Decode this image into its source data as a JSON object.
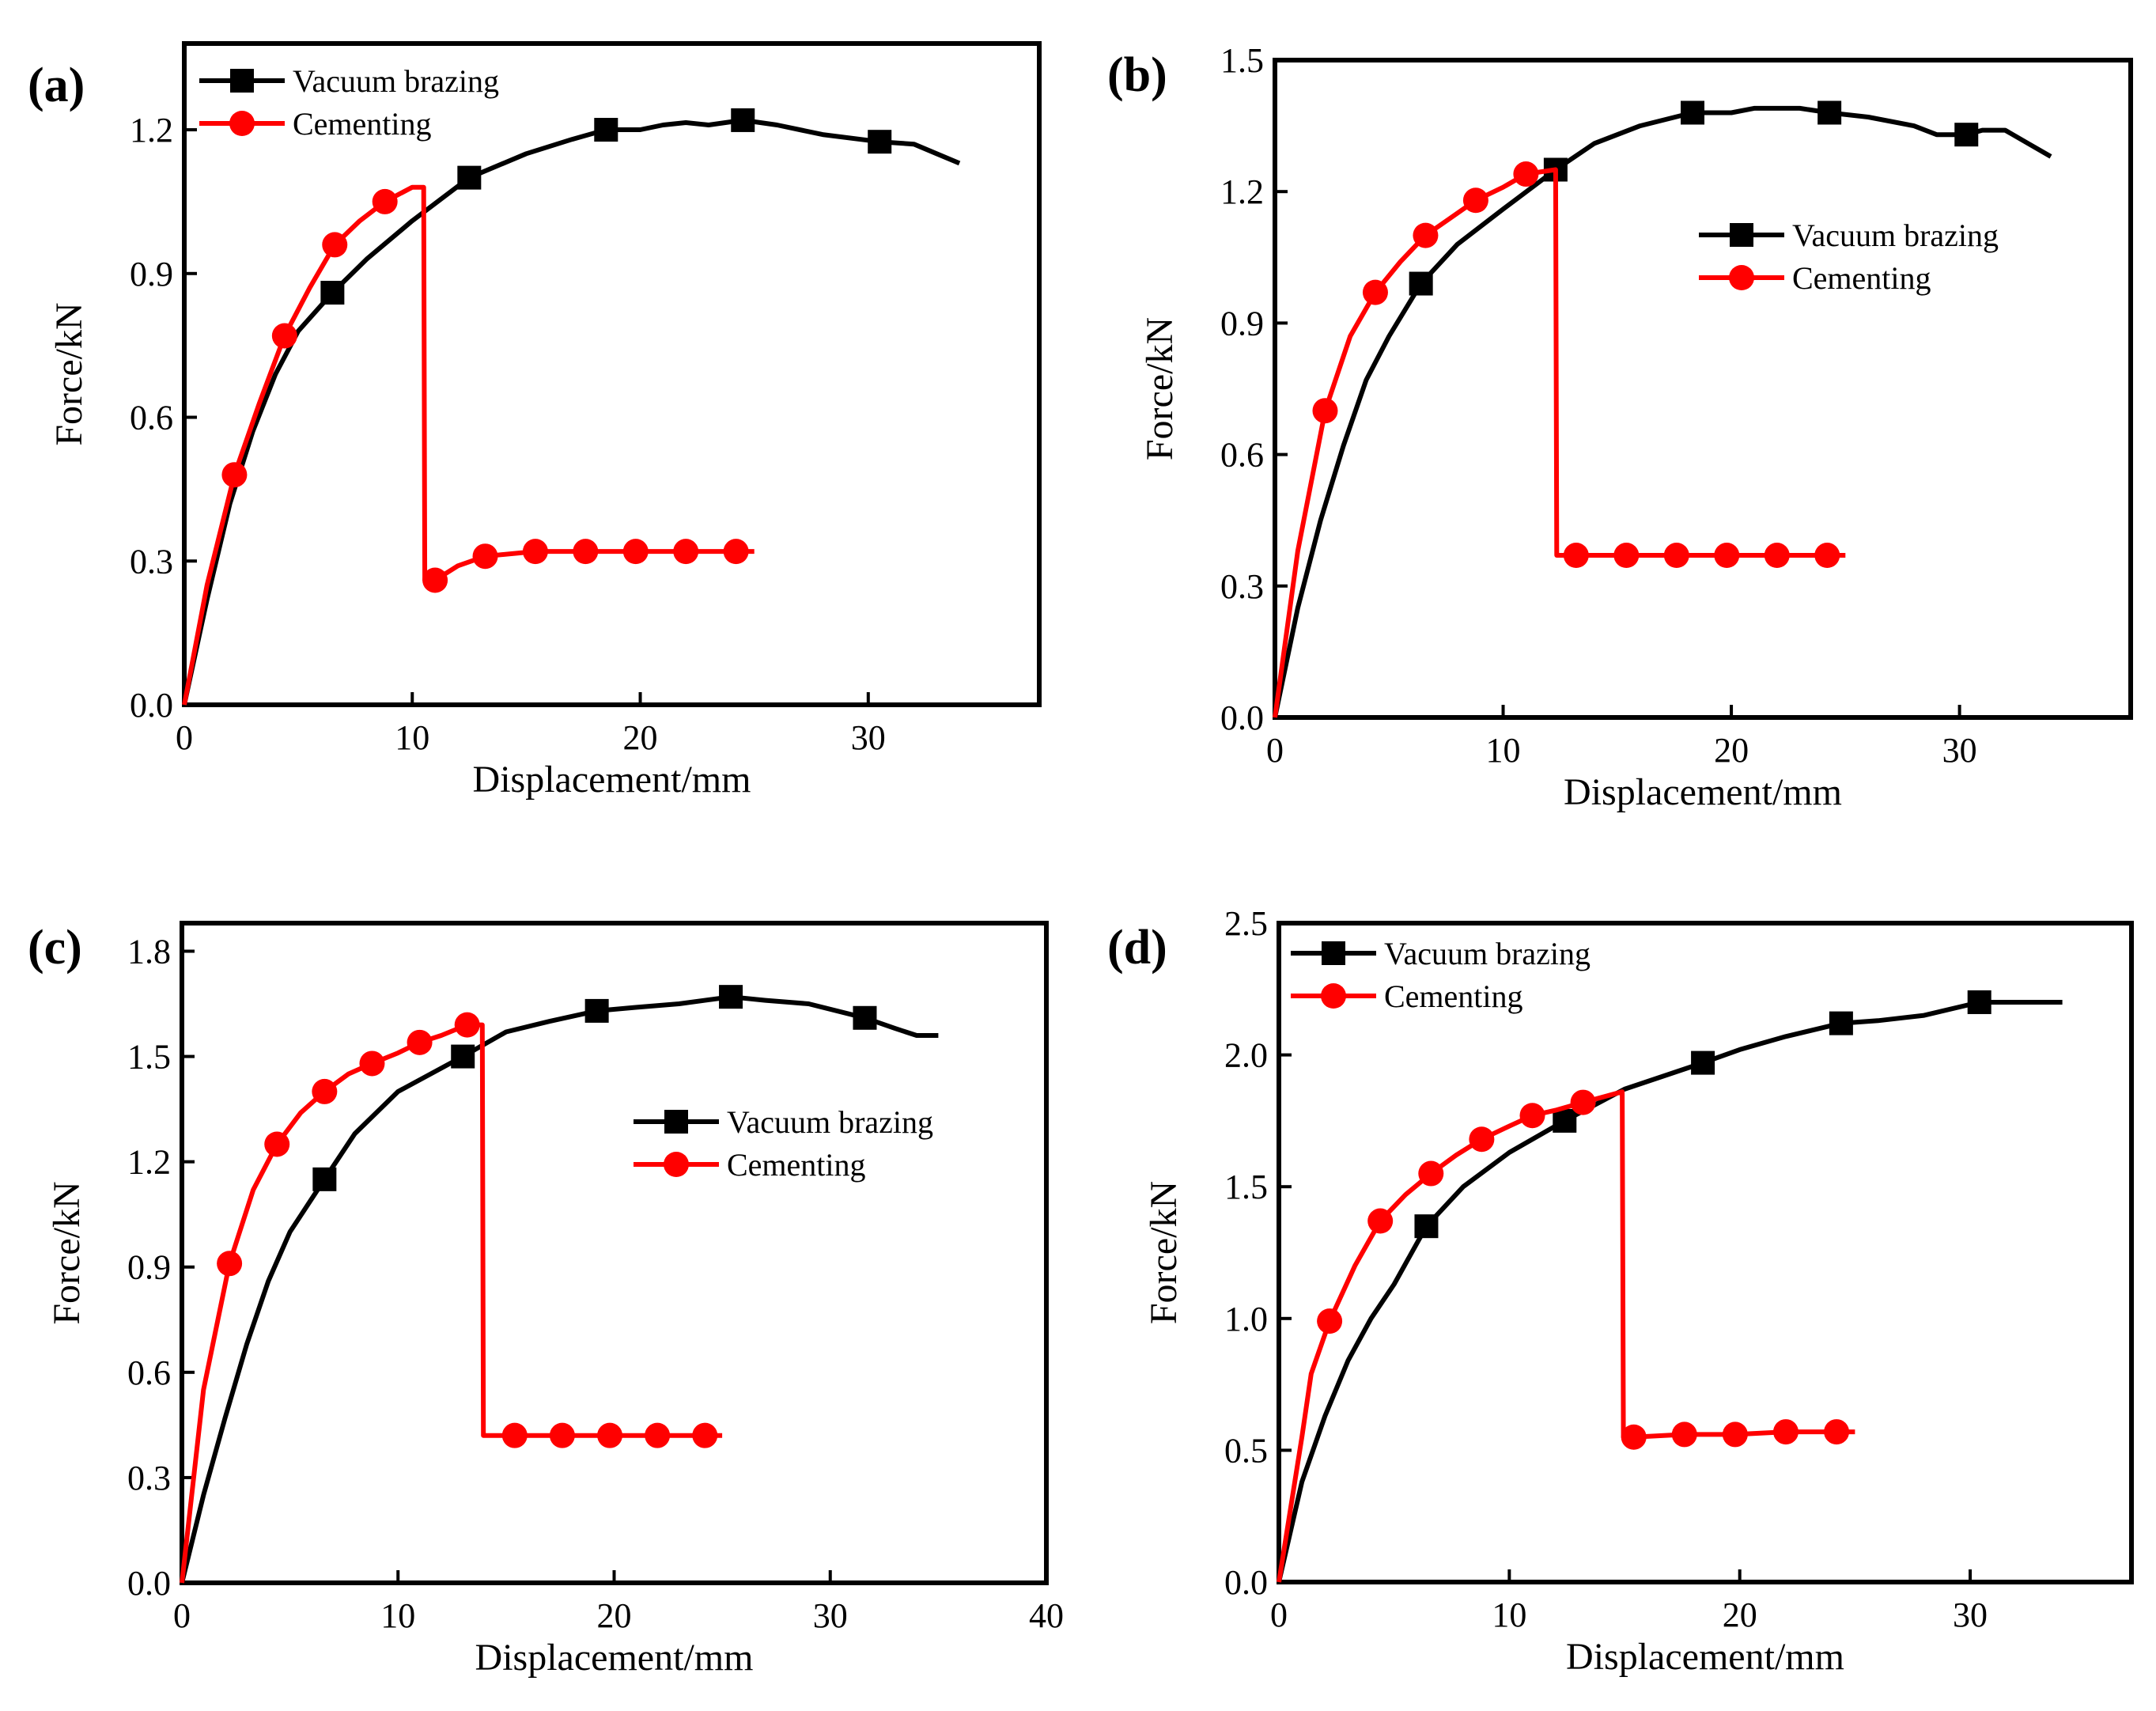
{
  "colors": {
    "vacuum": "#000000",
    "cementing": "#ff0000",
    "background": "#ffffff"
  },
  "chart_data": [
    {
      "panel": "(a)",
      "type": "line",
      "xlabel": "Displacement/mm",
      "ylabel": "Force/kN",
      "xlim": [
        0,
        37.5
      ],
      "ylim": [
        0,
        1.38
      ],
      "xticks": [
        "0",
        "10",
        "20",
        "30"
      ],
      "yticks": [
        "0.0",
        "0.3",
        "0.6",
        "0.9",
        "1.2"
      ],
      "legend_position": "top-left",
      "series": [
        {
          "name": "Vacuum brazing",
          "color": "#000000",
          "marker": "square",
          "x": [
            0,
            1,
            2,
            3,
            4,
            5,
            6.5,
            8,
            10,
            12.5,
            15,
            17,
            18.5,
            20,
            21,
            22,
            23,
            24.5,
            26,
            28,
            30.5,
            32,
            33,
            34
          ],
          "y": [
            0,
            0.22,
            0.42,
            0.57,
            0.69,
            0.78,
            0.86,
            0.93,
            1.01,
            1.1,
            1.15,
            1.18,
            1.2,
            1.2,
            1.21,
            1.215,
            1.21,
            1.22,
            1.21,
            1.19,
            1.175,
            1.17,
            1.15,
            1.13
          ],
          "marker_x": [
            6.5,
            12.5,
            18.5,
            24.5,
            30.5
          ],
          "marker_y": [
            0.86,
            1.1,
            1.2,
            1.22,
            1.175
          ]
        },
        {
          "name": "Cementing",
          "color": "#ff0000",
          "marker": "circle",
          "x": [
            0,
            1,
            2.2,
            3.3,
            4.4,
            5.5,
            6.6,
            7.7,
            8.8,
            10,
            10.5,
            10.55,
            11,
            12,
            13.2,
            15.4,
            17.6,
            19.8,
            22,
            24.2,
            25
          ],
          "y": [
            0,
            0.25,
            0.48,
            0.63,
            0.77,
            0.87,
            0.96,
            1.01,
            1.05,
            1.08,
            1.08,
            0.26,
            0.26,
            0.29,
            0.31,
            0.32,
            0.32,
            0.32,
            0.32,
            0.32,
            0.32
          ],
          "marker_x": [
            2.2,
            4.4,
            6.6,
            8.8,
            11,
            13.2,
            15.4,
            17.6,
            19.8,
            22,
            24.2
          ],
          "marker_y": [
            0.48,
            0.77,
            0.96,
            1.05,
            0.26,
            0.31,
            0.32,
            0.32,
            0.32,
            0.32,
            0.32
          ]
        }
      ]
    },
    {
      "panel": "(b)",
      "type": "line",
      "xlabel": "Displacement/mm",
      "ylabel": "Force/kN",
      "xlim": [
        0,
        37.5
      ],
      "ylim": [
        0,
        1.5
      ],
      "xticks": [
        "0",
        "10",
        "20",
        "30"
      ],
      "yticks": [
        "0.0",
        "0.3",
        "0.6",
        "0.9",
        "1.2",
        "1.5"
      ],
      "legend_position": "center-right",
      "series": [
        {
          "name": "Vacuum brazing",
          "color": "#000000",
          "marker": "square",
          "x": [
            0,
            1,
            2,
            3,
            4,
            5,
            6.4,
            8,
            10,
            12.3,
            14,
            16,
            18.3,
            20,
            21,
            22,
            23,
            24.3,
            26,
            28,
            29,
            30.3,
            31,
            32,
            33,
            34
          ],
          "y": [
            0,
            0.25,
            0.45,
            0.62,
            0.77,
            0.87,
            0.99,
            1.08,
            1.16,
            1.25,
            1.31,
            1.35,
            1.38,
            1.38,
            1.39,
            1.39,
            1.39,
            1.38,
            1.37,
            1.35,
            1.33,
            1.33,
            1.34,
            1.34,
            1.31,
            1.28
          ],
          "marker_x": [
            6.4,
            12.3,
            18.3,
            24.3,
            30.3
          ],
          "marker_y": [
            0.99,
            1.25,
            1.38,
            1.38,
            1.33
          ]
        },
        {
          "name": "Cementing",
          "color": "#ff0000",
          "marker": "circle",
          "x": [
            0,
            1,
            2.2,
            3.3,
            4.4,
            5.5,
            6.6,
            7.7,
            8.8,
            10,
            11,
            12.3,
            12.35,
            13.2,
            15.4,
            17.6,
            19.8,
            22,
            24.2,
            25
          ],
          "y": [
            0,
            0.38,
            0.7,
            0.87,
            0.97,
            1.04,
            1.1,
            1.14,
            1.18,
            1.21,
            1.24,
            1.25,
            0.37,
            0.37,
            0.37,
            0.37,
            0.37,
            0.37,
            0.37,
            0.37
          ],
          "marker_x": [
            2.2,
            4.4,
            6.6,
            8.8,
            11,
            13.2,
            15.4,
            17.6,
            19.8,
            22,
            24.2
          ],
          "marker_y": [
            0.7,
            0.97,
            1.1,
            1.18,
            1.24,
            0.37,
            0.37,
            0.37,
            0.37,
            0.37,
            0.37
          ]
        }
      ]
    },
    {
      "panel": "(c)",
      "type": "line",
      "xlabel": "Displacement/mm",
      "ylabel": "Force/kN",
      "xlim": [
        0,
        40
      ],
      "ylim": [
        0,
        1.88
      ],
      "xticks": [
        "0",
        "10",
        "20",
        "30",
        "40"
      ],
      "yticks": [
        "0.0",
        "0.3",
        "0.6",
        "0.9",
        "1.2",
        "1.5",
        "1.8"
      ],
      "legend_position": "center-right",
      "series": [
        {
          "name": "Vacuum brazing",
          "color": "#000000",
          "marker": "square",
          "x": [
            0,
            1,
            2,
            3,
            4,
            5,
            6.6,
            8,
            10,
            13,
            15,
            17,
            19.2,
            21,
            23,
            25.4,
            27,
            29,
            31.6,
            33,
            34,
            35
          ],
          "y": [
            0,
            0.25,
            0.47,
            0.68,
            0.86,
            1.0,
            1.15,
            1.28,
            1.4,
            1.5,
            1.57,
            1.6,
            1.63,
            1.64,
            1.65,
            1.67,
            1.66,
            1.65,
            1.61,
            1.58,
            1.56,
            1.56
          ],
          "marker_x": [
            6.6,
            13,
            19.2,
            25.4,
            31.6
          ],
          "marker_y": [
            1.15,
            1.5,
            1.63,
            1.67,
            1.61
          ]
        },
        {
          "name": "Cementing",
          "color": "#ff0000",
          "marker": "circle",
          "x": [
            0,
            1,
            2.2,
            3.3,
            4.4,
            5.5,
            6.6,
            7.7,
            8.8,
            10,
            11,
            12,
            13.2,
            13.9,
            13.95,
            15.4,
            17.6,
            19.8,
            22,
            24.2,
            25
          ],
          "y": [
            0,
            0.55,
            0.91,
            1.12,
            1.25,
            1.34,
            1.4,
            1.45,
            1.48,
            1.51,
            1.54,
            1.56,
            1.59,
            1.59,
            0.42,
            0.42,
            0.42,
            0.42,
            0.42,
            0.42,
            0.42
          ],
          "marker_x": [
            2.2,
            4.4,
            6.6,
            8.8,
            11,
            13.2,
            15.4,
            17.6,
            19.8,
            22,
            24.2
          ],
          "marker_y": [
            0.91,
            1.25,
            1.4,
            1.48,
            1.54,
            1.59,
            0.42,
            0.42,
            0.42,
            0.42,
            0.42
          ]
        }
      ]
    },
    {
      "panel": "(d)",
      "type": "line",
      "xlabel": "Displacement/mm",
      "ylabel": "Force/kN",
      "xlim": [
        0,
        37
      ],
      "ylim": [
        0,
        2.5
      ],
      "xticks": [
        "0",
        "10",
        "20",
        "30"
      ],
      "yticks": [
        "0.0",
        "0.5",
        "1.0",
        "1.5",
        "2.0",
        "2.5"
      ],
      "legend_position": "top-left",
      "series": [
        {
          "name": "Vacuum brazing",
          "color": "#000000",
          "marker": "square",
          "x": [
            0,
            1,
            2,
            3,
            4,
            5,
            6.4,
            8,
            10,
            12.4,
            15,
            18.4,
            20,
            22,
            24.4,
            26,
            28,
            30.4,
            32,
            34
          ],
          "y": [
            0,
            0.38,
            0.63,
            0.84,
            1.0,
            1.13,
            1.35,
            1.5,
            1.63,
            1.75,
            1.87,
            1.97,
            2.02,
            2.07,
            2.12,
            2.13,
            2.15,
            2.2,
            2.2,
            2.2
          ],
          "marker_x": [
            6.4,
            12.4,
            18.4,
            24.4,
            30.4
          ],
          "marker_y": [
            1.35,
            1.75,
            1.97,
            2.12,
            2.2
          ]
        },
        {
          "name": "Cementing",
          "color": "#ff0000",
          "marker": "circle",
          "x": [
            0,
            1,
            1.4,
            2.2,
            3.3,
            4.4,
            5.5,
            6.6,
            7.7,
            8.8,
            10,
            11,
            12,
            13.2,
            14.9,
            14.95,
            15.4,
            17.6,
            19.8,
            22,
            24.2,
            25
          ],
          "y": [
            0,
            0.55,
            0.79,
            0.99,
            1.2,
            1.37,
            1.47,
            1.55,
            1.62,
            1.68,
            1.73,
            1.77,
            1.79,
            1.82,
            1.86,
            0.55,
            0.55,
            0.56,
            0.56,
            0.57,
            0.57,
            0.57
          ],
          "marker_x": [
            2.2,
            4.4,
            6.6,
            8.8,
            11,
            13.2,
            15.4,
            17.6,
            19.8,
            22,
            24.2
          ],
          "marker_y": [
            0.99,
            1.37,
            1.55,
            1.68,
            1.77,
            1.82,
            0.55,
            0.56,
            0.56,
            0.57,
            0.57
          ]
        }
      ]
    }
  ]
}
